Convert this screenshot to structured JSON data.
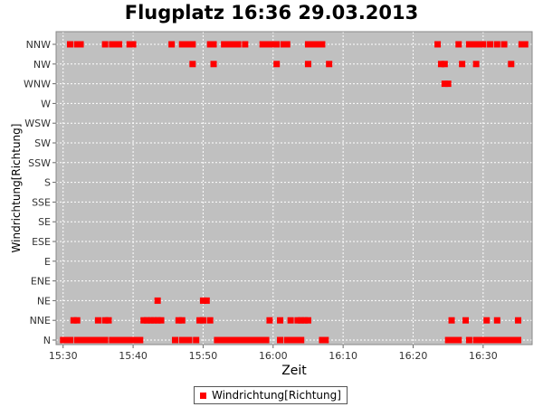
{
  "colors": {
    "series": "#ff0000",
    "plot_background": "#c0c0c0",
    "grid": "#ffffff"
  },
  "chart_data": {
    "type": "scatter",
    "title": "Flugplatz 16:36 29.03.2013",
    "xlabel": "Zeit",
    "ylabel": "Windrichtung[Richtung]",
    "x_ticks": [
      "15:30",
      "15:40",
      "15:50",
      "16:00",
      "16:10",
      "16:20",
      "16:30"
    ],
    "y_categories": [
      "N",
      "NNE",
      "NE",
      "ENE",
      "E",
      "ESE",
      "SE",
      "SSE",
      "S",
      "SSW",
      "SW",
      "WSW",
      "W",
      "WNW",
      "NW",
      "NNW"
    ],
    "x_range": [
      "15:29",
      "16:37"
    ],
    "grid": true,
    "legend_position": "bottom",
    "series": [
      {
        "name": "Windrichtung[Richtung]",
        "marker": "square",
        "points": [
          [
            "15:30",
            "N"
          ],
          [
            "15:30.5",
            "N"
          ],
          [
            "15:31",
            "N"
          ],
          [
            "15:32",
            "N"
          ],
          [
            "15:32.5",
            "N"
          ],
          [
            "15:33",
            "N"
          ],
          [
            "15:33.5",
            "N"
          ],
          [
            "15:34",
            "N"
          ],
          [
            "15:34.5",
            "N"
          ],
          [
            "15:35",
            "N"
          ],
          [
            "15:35.5",
            "N"
          ],
          [
            "15:36",
            "N"
          ],
          [
            "15:37",
            "N"
          ],
          [
            "15:37.5",
            "N"
          ],
          [
            "15:38",
            "N"
          ],
          [
            "15:38.5",
            "N"
          ],
          [
            "15:39",
            "N"
          ],
          [
            "15:39.5",
            "N"
          ],
          [
            "15:40",
            "N"
          ],
          [
            "15:40.5",
            "N"
          ],
          [
            "15:41",
            "N"
          ],
          [
            "15:46",
            "N"
          ],
          [
            "15:47",
            "N"
          ],
          [
            "15:47.5",
            "N"
          ],
          [
            "15:48",
            "N"
          ],
          [
            "15:49",
            "N"
          ],
          [
            "15:52",
            "N"
          ],
          [
            "15:52.5",
            "N"
          ],
          [
            "15:53",
            "N"
          ],
          [
            "15:53.5",
            "N"
          ],
          [
            "15:54",
            "N"
          ],
          [
            "15:54.5",
            "N"
          ],
          [
            "15:55",
            "N"
          ],
          [
            "15:55.5",
            "N"
          ],
          [
            "15:56",
            "N"
          ],
          [
            "15:56.5",
            "N"
          ],
          [
            "15:57",
            "N"
          ],
          [
            "15:57.5",
            "N"
          ],
          [
            "15:58",
            "N"
          ],
          [
            "15:58.5",
            "N"
          ],
          [
            "15:59",
            "N"
          ],
          [
            "16:01",
            "N"
          ],
          [
            "16:02",
            "N"
          ],
          [
            "16:02.5",
            "N"
          ],
          [
            "16:03",
            "N"
          ],
          [
            "16:03.5",
            "N"
          ],
          [
            "16:04",
            "N"
          ],
          [
            "16:07",
            "N"
          ],
          [
            "16:07.5",
            "N"
          ],
          [
            "16:25",
            "N"
          ],
          [
            "16:25.5",
            "N"
          ],
          [
            "16:26",
            "N"
          ],
          [
            "16:26.5",
            "N"
          ],
          [
            "16:28",
            "N"
          ],
          [
            "16:29",
            "N"
          ],
          [
            "16:29.5",
            "N"
          ],
          [
            "16:30",
            "N"
          ],
          [
            "16:30.5",
            "N"
          ],
          [
            "16:31",
            "N"
          ],
          [
            "16:31.5",
            "N"
          ],
          [
            "16:32",
            "N"
          ],
          [
            "16:32.5",
            "N"
          ],
          [
            "16:33",
            "N"
          ],
          [
            "16:33.5",
            "N"
          ],
          [
            "16:34",
            "N"
          ],
          [
            "16:34.5",
            "N"
          ],
          [
            "16:35",
            "N"
          ],
          [
            "15:31.5",
            "NNE"
          ],
          [
            "15:32",
            "NNE"
          ],
          [
            "15:35",
            "NNE"
          ],
          [
            "15:36",
            "NNE"
          ],
          [
            "15:36.5",
            "NNE"
          ],
          [
            "15:41.5",
            "NNE"
          ],
          [
            "15:42",
            "NNE"
          ],
          [
            "15:42.5",
            "NNE"
          ],
          [
            "15:43",
            "NNE"
          ],
          [
            "15:43.5",
            "NNE"
          ],
          [
            "15:44",
            "NNE"
          ],
          [
            "15:46.5",
            "NNE"
          ],
          [
            "15:47",
            "NNE"
          ],
          [
            "15:49.5",
            "NNE"
          ],
          [
            "15:50",
            "NNE"
          ],
          [
            "15:51",
            "NNE"
          ],
          [
            "15:59.5",
            "NNE"
          ],
          [
            "16:01",
            "NNE"
          ],
          [
            "16:02.5",
            "NNE"
          ],
          [
            "16:03.5",
            "NNE"
          ],
          [
            "16:04",
            "NNE"
          ],
          [
            "16:04.5",
            "NNE"
          ],
          [
            "16:05",
            "NNE"
          ],
          [
            "16:25.5",
            "NNE"
          ],
          [
            "16:27.5",
            "NNE"
          ],
          [
            "16:30.5",
            "NNE"
          ],
          [
            "16:32",
            "NNE"
          ],
          [
            "16:35",
            "NNE"
          ],
          [
            "15:43.5",
            "NE"
          ],
          [
            "15:50",
            "NE"
          ],
          [
            "15:50.5",
            "NE"
          ],
          [
            "16:24.5",
            "WNW"
          ],
          [
            "16:25",
            "WNW"
          ],
          [
            "15:48.5",
            "NW"
          ],
          [
            "15:51.5",
            "NW"
          ],
          [
            "16:00.5",
            "NW"
          ],
          [
            "16:05",
            "NW"
          ],
          [
            "16:08",
            "NW"
          ],
          [
            "16:24",
            "NW"
          ],
          [
            "16:24.5",
            "NW"
          ],
          [
            "16:27",
            "NW"
          ],
          [
            "16:29",
            "NW"
          ],
          [
            "16:34",
            "NW"
          ],
          [
            "15:31",
            "NNW"
          ],
          [
            "15:32",
            "NNW"
          ],
          [
            "15:32.5",
            "NNW"
          ],
          [
            "15:36",
            "NNW"
          ],
          [
            "15:37",
            "NNW"
          ],
          [
            "15:37.5",
            "NNW"
          ],
          [
            "15:38",
            "NNW"
          ],
          [
            "15:39.5",
            "NNW"
          ],
          [
            "15:40",
            "NNW"
          ],
          [
            "15:45.5",
            "NNW"
          ],
          [
            "15:47",
            "NNW"
          ],
          [
            "15:47.5",
            "NNW"
          ],
          [
            "15:48",
            "NNW"
          ],
          [
            "15:48.5",
            "NNW"
          ],
          [
            "15:51",
            "NNW"
          ],
          [
            "15:51.5",
            "NNW"
          ],
          [
            "15:53",
            "NNW"
          ],
          [
            "15:53.5",
            "NNW"
          ],
          [
            "15:54",
            "NNW"
          ],
          [
            "15:54.5",
            "NNW"
          ],
          [
            "15:55",
            "NNW"
          ],
          [
            "15:56",
            "NNW"
          ],
          [
            "15:58.5",
            "NNW"
          ],
          [
            "15:59",
            "NNW"
          ],
          [
            "15:59.5",
            "NNW"
          ],
          [
            "16:00",
            "NNW"
          ],
          [
            "16:00.5",
            "NNW"
          ],
          [
            "16:01.5",
            "NNW"
          ],
          [
            "16:02",
            "NNW"
          ],
          [
            "16:05",
            "NNW"
          ],
          [
            "16:05.5",
            "NNW"
          ],
          [
            "16:06",
            "NNW"
          ],
          [
            "16:06.5",
            "NNW"
          ],
          [
            "16:07",
            "NNW"
          ],
          [
            "16:23.5",
            "NNW"
          ],
          [
            "16:26.5",
            "NNW"
          ],
          [
            "16:28",
            "NNW"
          ],
          [
            "16:28.5",
            "NNW"
          ],
          [
            "16:29",
            "NNW"
          ],
          [
            "16:29.5",
            "NNW"
          ],
          [
            "16:30",
            "NNW"
          ],
          [
            "16:31",
            "NNW"
          ],
          [
            "16:32",
            "NNW"
          ],
          [
            "16:33",
            "NNW"
          ],
          [
            "16:35.5",
            "NNW"
          ],
          [
            "16:36",
            "NNW"
          ]
        ]
      }
    ]
  }
}
